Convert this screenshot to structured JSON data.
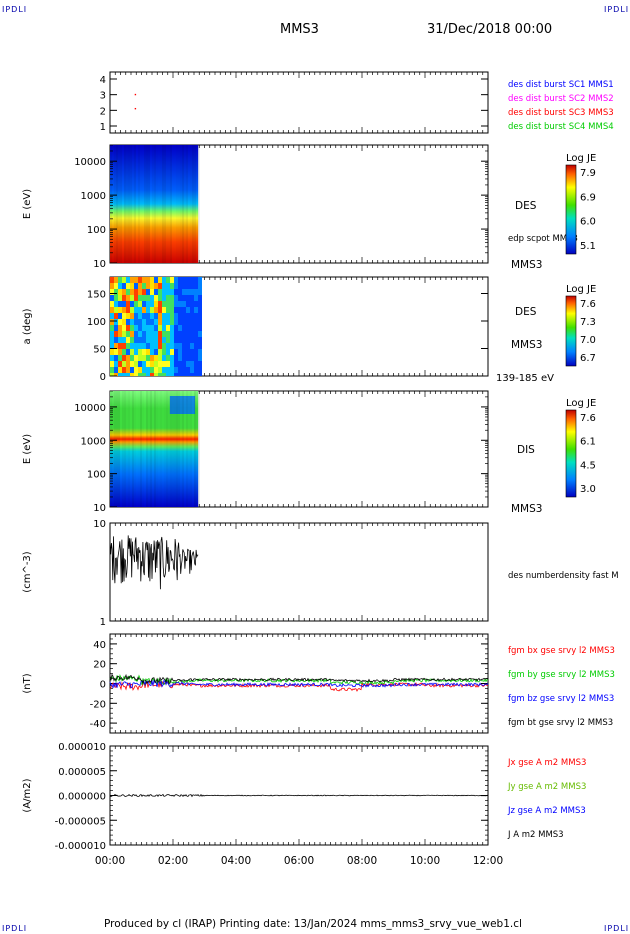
{
  "corner_tag": "IPDLI",
  "header": {
    "title": "MMS3",
    "date": "31/Dec/2018 00:00"
  },
  "footer": {
    "text": "Produced by cl (IRAP)   Printing date: 13/Jan/2024   mms_mms3_srvy_vue_web1.cl"
  },
  "chart_data": [
    {
      "type": "scatter",
      "panel": "spacecraft-availability",
      "ylim": [
        1,
        4
      ],
      "yticks": [
        "1",
        "2",
        "3",
        "4"
      ],
      "legend": [
        {
          "label": "des dist burst SC1 MMS1",
          "color": "#0000ff"
        },
        {
          "label": "des dist burst SC2 MMS2",
          "color": "#ff00ff"
        },
        {
          "label": "des dist burst SC3 MMS3",
          "color": "#ff0000"
        },
        {
          "label": "des dist burst SC4 MMS4",
          "color": "#00cc00"
        }
      ],
      "points": [
        {
          "t": 0.8,
          "y": 3
        },
        {
          "t": 0.8,
          "y": 2.1
        }
      ]
    },
    {
      "type": "heatmap",
      "panel": "des-energy-spectrogram",
      "ylabel": "E (eV)",
      "yscale": "log",
      "ylim": [
        10,
        30000
      ],
      "yticks": [
        "10",
        "100",
        "1000",
        "10000"
      ],
      "xlim_hours": [
        0,
        2.8
      ],
      "side_labels": [
        "DES",
        "edp scpot MMS3",
        "MMS3"
      ],
      "colorbar": {
        "title": "Log JE",
        "ticks": [
          "7.9",
          "6.9",
          "6.0",
          "5.1"
        ]
      }
    },
    {
      "type": "heatmap",
      "panel": "des-pitch-angle",
      "ylabel": "a (deg)",
      "ylim": [
        0,
        180
      ],
      "yticks": [
        "0",
        "50",
        "100",
        "150"
      ],
      "xlim_hours": [
        0,
        2.8
      ],
      "side_labels": [
        "DES",
        "MMS3",
        "139-185 eV"
      ],
      "colorbar": {
        "title": "Log JE",
        "ticks": [
          "7.6",
          "7.3",
          "7.0",
          "6.7"
        ]
      }
    },
    {
      "type": "heatmap",
      "panel": "dis-energy-spectrogram",
      "ylabel": "E (eV)",
      "yscale": "log",
      "ylim": [
        10,
        30000
      ],
      "yticks": [
        "10",
        "100",
        "1000",
        "10000"
      ],
      "xlim_hours": [
        0,
        2.8
      ],
      "side_labels": [
        "DIS",
        "MMS3"
      ],
      "colorbar": {
        "title": "Log JE",
        "ticks": [
          "7.6",
          "6.1",
          "4.5",
          "3.0"
        ]
      }
    },
    {
      "type": "line",
      "panel": "density",
      "ylabel": "(cm^-3)",
      "yscale": "log",
      "ylim": [
        1,
        10
      ],
      "yticks": [
        "1",
        "10"
      ],
      "series": [
        {
          "name": "des numberdensity fast M",
          "color": "#000000",
          "xlim_hours": [
            0,
            2.8
          ],
          "range": [
            2,
            9
          ]
        }
      ]
    },
    {
      "type": "line",
      "panel": "magnetic-field",
      "ylabel": "(nT)",
      "ylim": [
        -50,
        50
      ],
      "yticks": [
        "-40",
        "-20",
        "0",
        "20",
        "40"
      ],
      "series": [
        {
          "name": "fgm bx gse srvy l2 MMS3",
          "color": "#ff0000"
        },
        {
          "name": "fgm by gse srvy l2 MMS3",
          "color": "#00cc00"
        },
        {
          "name": "fgm bz gse srvy l2 MMS3",
          "color": "#0000ff"
        },
        {
          "name": "fgm bt gse srvy l2 MMS3",
          "color": "#000000"
        }
      ]
    },
    {
      "type": "line",
      "panel": "current-density",
      "ylabel": "(A/m2)",
      "ylim": [
        -1e-05,
        1e-05
      ],
      "yticks": [
        "-0.000010",
        "-0.000005",
        "0.000000",
        "0.000005",
        "0.000010"
      ],
      "series": [
        {
          "name": "Jx gse A m2 MMS3",
          "color": "#ff0000"
        },
        {
          "name": "Jy gse A m2 MMS3",
          "color": "#66bb00"
        },
        {
          "name": "Jz gse A m2 MMS3",
          "color": "#0000ff"
        },
        {
          "name": "J A m2 MMS3",
          "color": "#000000"
        }
      ]
    }
  ],
  "time_axis": {
    "ticks": [
      "00:00",
      "02:00",
      "04:00",
      "06:00",
      "08:00",
      "10:00",
      "12:00"
    ],
    "range_hours": [
      0,
      12
    ]
  }
}
